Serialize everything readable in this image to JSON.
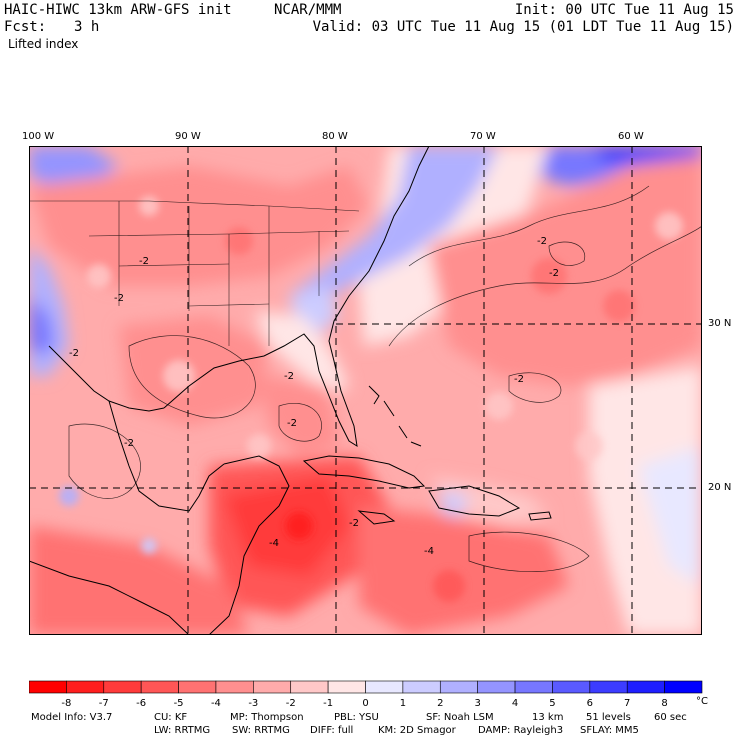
{
  "header": {
    "model_title": "HAIC-HIWC 13km ARW-GFS init",
    "org": "NCAR/MMM",
    "init": "Init: 00 UTC Tue 11 Aug 15",
    "fcst_label": "Fcst:",
    "fcst_value": "3 h",
    "valid": "Valid: 03 UTC Tue 11 Aug 15 (01 LDT Tue 11 Aug 15)",
    "field": "Lifted index"
  },
  "axes": {
    "lon_labels": [
      "100 W",
      "90 W",
      "80 W",
      "70 W",
      "60 W"
    ],
    "lat_labels": [
      "30 N",
      "20 N"
    ]
  },
  "contour_labels": [
    "-2",
    "-2",
    "-2",
    "-2",
    "-2",
    "-2",
    "-2",
    "-2",
    "-2",
    "-4",
    "-4",
    "-2"
  ],
  "colorbar": {
    "ticks": [
      "-8",
      "-7",
      "-6",
      "-5",
      "-4",
      "-3",
      "-2",
      "-1",
      "0",
      "1",
      "2",
      "3",
      "4",
      "5",
      "6",
      "7",
      "8"
    ],
    "unit": "°C",
    "colors": [
      "#ff0000",
      "#ff1e1e",
      "#ff3b3b",
      "#ff5656",
      "#ff7272",
      "#ff8f8f",
      "#ffabab",
      "#ffc8c8",
      "#ffe6e6",
      "#e8e8ff",
      "#ccccff",
      "#b0b0ff",
      "#9494ff",
      "#7777ff",
      "#5a5aff",
      "#3c3cff",
      "#1e1eff",
      "#0000ff"
    ]
  },
  "footer": {
    "line1": {
      "info": "Model Info: V3.7",
      "cu": "CU: KF",
      "mp": "MP: Thompson",
      "pbl": "PBL: YSU",
      "sf": "SF: Noah LSM",
      "res": "13 km",
      "levels": "51 levels",
      "dt": "60 sec"
    },
    "line2": {
      "lw": "LW: RRTMG",
      "sw": "SW: RRTMG",
      "diff": "DIFF: full",
      "km": "KM: 2D Smagor",
      "damp": "DAMP: Rayleigh3",
      "sflay": "SFLAY: MM5"
    }
  }
}
